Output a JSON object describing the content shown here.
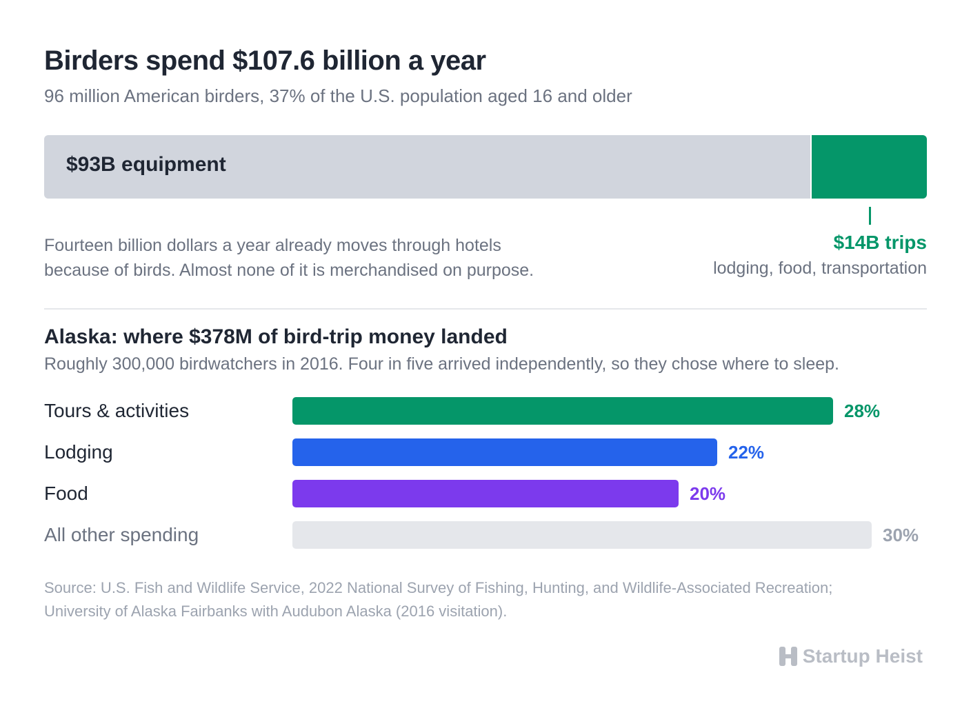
{
  "header": {
    "title": "Birders spend $107.6 billion a year",
    "subtitle": "96 million American birders, 37% of the U.S. population aged 16 and older"
  },
  "colors": {
    "equipment": "#d1d5dd",
    "trips": "#059669",
    "tours": "#059669",
    "lodging": "#2563eb",
    "food": "#7c3aed",
    "other": "#e5e7eb",
    "other_text": "#9ca3af"
  },
  "total_split": {
    "equipment_label": "$93B equipment",
    "trips_label": "$14B trips",
    "trips_sub": "lodging, food, transportation",
    "note_line1": "Fourteen billion dollars a year already moves through hotels",
    "note_line2": "because of birds. Almost none of it is merchandised on purpose."
  },
  "alaska": {
    "title": "Alaska: where $378M of bird-trip money landed",
    "subtitle": "Roughly 300,000 birdwatchers in 2016. Four in five arrived independently, so they chose where to sleep."
  },
  "chart_data": [
    {
      "type": "bar",
      "orientation": "horizontal-stacked",
      "title": "Birders spend $107.6 billion a year",
      "categories": [
        "equipment",
        "trips"
      ],
      "values": [
        93,
        14
      ],
      "unit": "$B"
    },
    {
      "type": "bar",
      "orientation": "horizontal",
      "title": "Alaska: where $378M of bird-trip money landed",
      "categories": [
        "Tours & activities",
        "Lodging",
        "Food",
        "All other spending"
      ],
      "values": [
        28,
        22,
        20,
        30
      ],
      "value_labels": [
        "28%",
        "22%",
        "20%",
        "30%"
      ],
      "unit": "%"
    }
  ],
  "footer": {
    "source_line1": "Source: U.S. Fish and Wildlife Service, 2022 National Survey of Fishing, Hunting, and Wildlife-Associated Recreation;",
    "source_line2": "University of Alaska Fairbanks with Audubon Alaska (2016 visitation).",
    "brand": "Startup Heist",
    "brand_icon": "building-h-icon"
  }
}
